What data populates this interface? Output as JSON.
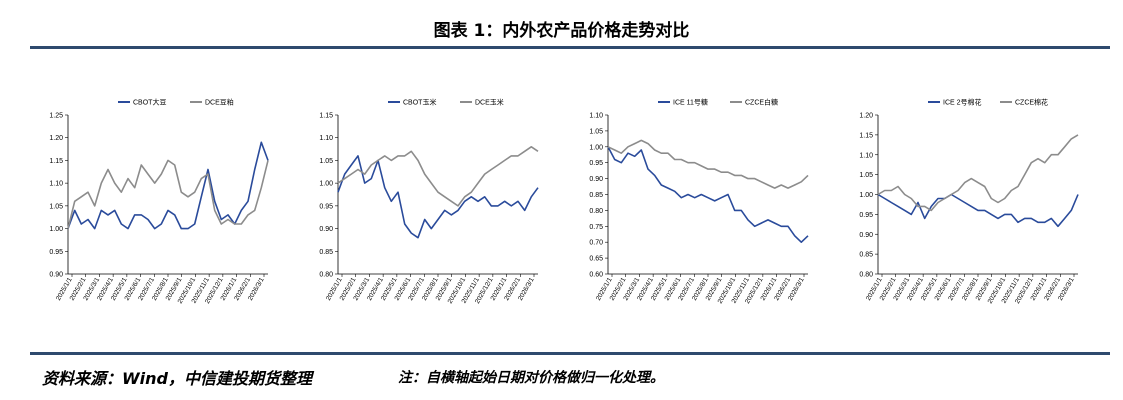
{
  "title": "图表 1：内外农产品价格走势对比",
  "source": "资料来源：Wind，中信建投期货整理",
  "note": "注：自横轴起始日期对价格做归一化处理。",
  "colors": {
    "series1": "#2a4b9b",
    "series2": "#8c8c8c",
    "rule": "#2f4a6e"
  },
  "x_ticks": [
    "2025/1/1",
    "2025/2/1",
    "2025/3/1",
    "2025/4/1",
    "2025/5/1",
    "2025/6/1",
    "2025/7/1",
    "2025/8/1",
    "2025/9/1",
    "2025/10/1",
    "2025/11/1",
    "2025/12/1",
    "2026/1/1",
    "2026/2/1",
    "2026/3/1"
  ],
  "chart_data": [
    {
      "type": "line",
      "ylim": [
        0.9,
        1.25
      ],
      "yticks": [
        "0.90",
        "0.95",
        "1.00",
        "1.05",
        "1.10",
        "1.15",
        "1.20",
        "1.25"
      ],
      "series": [
        {
          "name": "CBOT大豆",
          "values": [
            1.0,
            1.04,
            1.01,
            1.02,
            1.0,
            1.04,
            1.03,
            1.04,
            1.01,
            1.0,
            1.03,
            1.03,
            1.02,
            1.0,
            1.01,
            1.04,
            1.03,
            1.0,
            1.0,
            1.01,
            1.07,
            1.13,
            1.06,
            1.02,
            1.03,
            1.01,
            1.04,
            1.06,
            1.13,
            1.19,
            1.15
          ]
        },
        {
          "name": "DCE豆粕",
          "values": [
            1.0,
            1.06,
            1.07,
            1.08,
            1.05,
            1.1,
            1.13,
            1.1,
            1.08,
            1.11,
            1.09,
            1.14,
            1.12,
            1.1,
            1.12,
            1.15,
            1.14,
            1.08,
            1.07,
            1.08,
            1.11,
            1.12,
            1.04,
            1.01,
            1.02,
            1.01,
            1.01,
            1.03,
            1.04,
            1.09,
            1.15
          ]
        }
      ]
    },
    {
      "type": "line",
      "ylim": [
        0.8,
        1.15
      ],
      "yticks": [
        "0.80",
        "0.85",
        "0.90",
        "0.95",
        "1.00",
        "1.05",
        "1.10",
        "1.15"
      ],
      "series": [
        {
          "name": "CBOT玉米",
          "values": [
            0.98,
            1.02,
            1.04,
            1.06,
            1.0,
            1.01,
            1.05,
            0.99,
            0.96,
            0.98,
            0.91,
            0.89,
            0.88,
            0.92,
            0.9,
            0.92,
            0.94,
            0.93,
            0.94,
            0.96,
            0.97,
            0.96,
            0.97,
            0.95,
            0.95,
            0.96,
            0.95,
            0.96,
            0.94,
            0.97,
            0.99
          ]
        },
        {
          "name": "DCE玉米",
          "values": [
            1.0,
            1.01,
            1.02,
            1.03,
            1.02,
            1.04,
            1.05,
            1.06,
            1.05,
            1.06,
            1.06,
            1.07,
            1.05,
            1.02,
            1.0,
            0.98,
            0.97,
            0.96,
            0.95,
            0.97,
            0.98,
            1.0,
            1.02,
            1.03,
            1.04,
            1.05,
            1.06,
            1.06,
            1.07,
            1.08,
            1.07
          ]
        }
      ]
    },
    {
      "type": "line",
      "ylim": [
        0.6,
        1.1
      ],
      "yticks": [
        "0.60",
        "0.65",
        "0.70",
        "0.75",
        "0.80",
        "0.85",
        "0.90",
        "0.95",
        "1.00",
        "1.05",
        "1.10"
      ],
      "series": [
        {
          "name": "ICE 11号糖",
          "values": [
            1.0,
            0.96,
            0.95,
            0.98,
            0.97,
            0.99,
            0.93,
            0.91,
            0.88,
            0.87,
            0.86,
            0.84,
            0.85,
            0.84,
            0.85,
            0.84,
            0.83,
            0.84,
            0.85,
            0.8,
            0.8,
            0.77,
            0.75,
            0.76,
            0.77,
            0.76,
            0.75,
            0.75,
            0.72,
            0.7,
            0.72
          ]
        },
        {
          "name": "CZCE白糖",
          "values": [
            1.0,
            0.99,
            0.98,
            1.0,
            1.01,
            1.02,
            1.01,
            0.99,
            0.98,
            0.98,
            0.96,
            0.96,
            0.95,
            0.95,
            0.94,
            0.93,
            0.93,
            0.92,
            0.92,
            0.91,
            0.91,
            0.9,
            0.9,
            0.89,
            0.88,
            0.87,
            0.88,
            0.87,
            0.88,
            0.89,
            0.91
          ]
        }
      ]
    },
    {
      "type": "line",
      "ylim": [
        0.8,
        1.2
      ],
      "yticks": [
        "0.80",
        "0.85",
        "0.90",
        "0.95",
        "1.00",
        "1.05",
        "1.10",
        "1.15",
        "1.20"
      ],
      "series": [
        {
          "name": "ICE 2号棉花",
          "values": [
            1.0,
            0.99,
            0.98,
            0.97,
            0.96,
            0.95,
            0.98,
            0.94,
            0.97,
            0.99,
            0.99,
            1.0,
            0.99,
            0.98,
            0.97,
            0.96,
            0.96,
            0.95,
            0.94,
            0.95,
            0.95,
            0.93,
            0.94,
            0.94,
            0.93,
            0.93,
            0.94,
            0.92,
            0.94,
            0.96,
            1.0
          ]
        },
        {
          "name": "CZCE棉花",
          "values": [
            1.0,
            1.01,
            1.01,
            1.02,
            1.0,
            0.99,
            0.97,
            0.97,
            0.96,
            0.98,
            0.99,
            1.0,
            1.01,
            1.03,
            1.04,
            1.03,
            1.02,
            0.99,
            0.98,
            0.99,
            1.01,
            1.02,
            1.05,
            1.08,
            1.09,
            1.08,
            1.1,
            1.1,
            1.12,
            1.14,
            1.15
          ]
        }
      ]
    }
  ]
}
